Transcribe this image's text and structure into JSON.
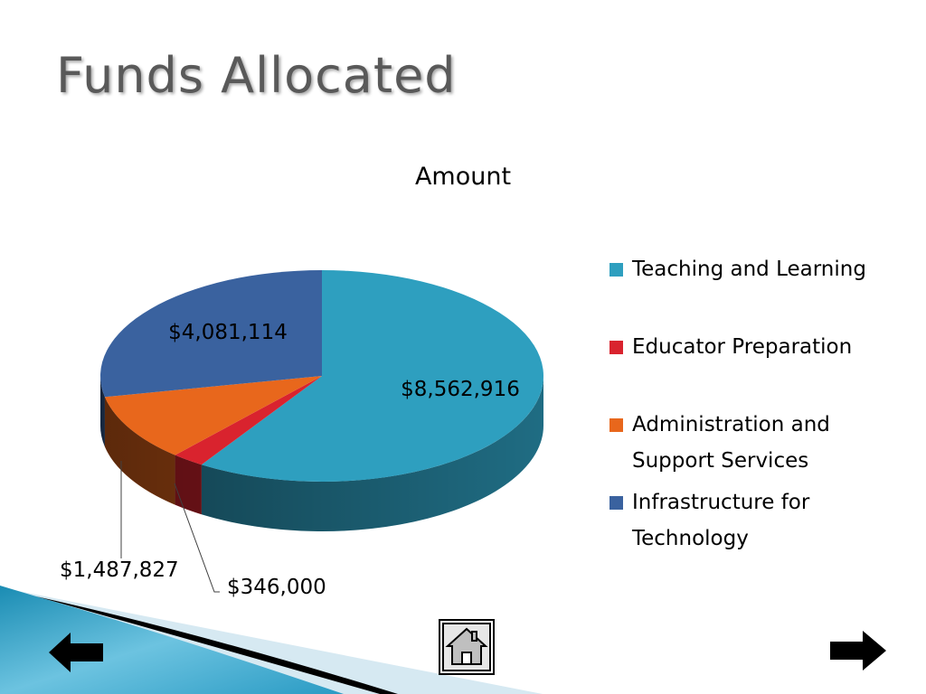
{
  "slide": {
    "title": "Funds Allocated"
  },
  "chart_data": {
    "type": "pie",
    "title": "Amount",
    "categories": [
      "Teaching and Learning",
      "Educator Preparation",
      "Administration and Support Services",
      "Infrastructure for Technology"
    ],
    "values": [
      8562916,
      346000,
      1487827,
      4081114
    ],
    "data_labels": [
      "$8,562,916",
      "$346,000",
      "$1,487,827",
      "$4,081,114"
    ],
    "colors": [
      "#2e9fbf",
      "#d9232e",
      "#e8671c",
      "#3a629f"
    ],
    "style": "3d",
    "legend": "right"
  },
  "legend": {
    "items": [
      {
        "label": "Teaching and Learning",
        "color": "#2e9fbf"
      },
      {
        "label": "Educator Preparation",
        "color": "#d9232e"
      },
      {
        "label": "Administration and Support Services",
        "color": "#e8671c"
      },
      {
        "label": "Infrastructure for Technology",
        "color": "#3a629f"
      }
    ]
  },
  "nav": {
    "back_icon": "left-arrow-icon",
    "home_icon": "home-icon",
    "next_icon": "right-arrow-icon"
  }
}
